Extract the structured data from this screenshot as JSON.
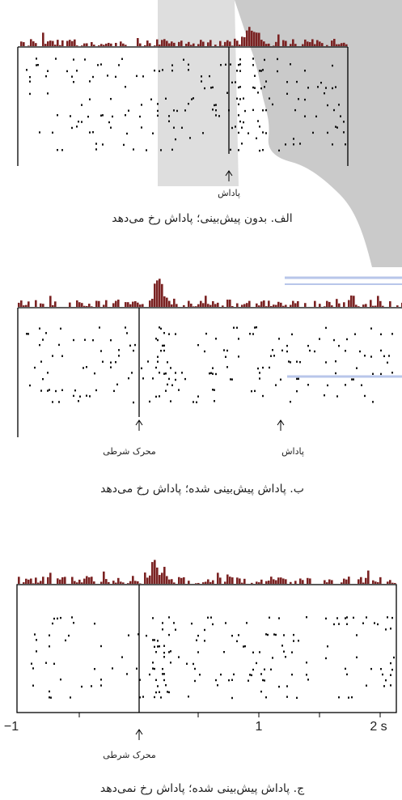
{
  "panels": [
    {
      "caption": "الف. بدون پیش‌بینی؛ پاداش رخ می‌دهد",
      "labels": [
        "پاداش"
      ]
    },
    {
      "caption": "ب. پاداش پیش‌بینی شده؛ پاداش رخ می‌دهد",
      "labels": [
        "محرک شرطی",
        "پاداش"
      ]
    },
    {
      "caption": "ج. پاداش پیش‌بینی شده؛ پاداش رخ نمی‌دهد",
      "labels": [
        "محرک شرطی"
      ],
      "axis_ticks": [
        "−1",
        "1",
        "2 s"
      ]
    }
  ]
}
